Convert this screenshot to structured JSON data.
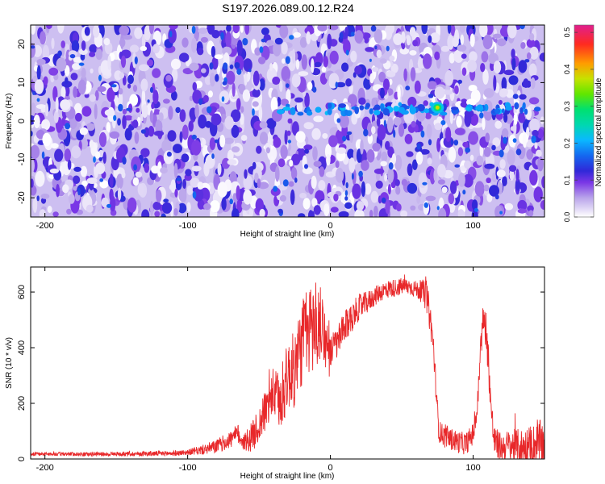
{
  "title": "S197.2026.089.00.12.R24",
  "chart_data": [
    {
      "type": "heatmap",
      "name": "spectrogram",
      "xlabel": "Height of straight line (km)",
      "ylabel": "Frequency (Hz)",
      "xlim": [
        -210,
        150
      ],
      "ylim": [
        -25,
        25
      ],
      "xticks": [
        -200,
        -100,
        0,
        100
      ],
      "yticks": [
        -20,
        -10,
        0,
        10,
        20
      ],
      "colorbar": {
        "label": "Normalized spectral amplitude",
        "range": [
          0.0,
          0.52
        ],
        "ticks": [
          0.0,
          0.1,
          0.2,
          0.3,
          0.4,
          0.5
        ],
        "tick_labels": [
          "0.0",
          "0.1",
          "0.2",
          "0.3",
          "0.4",
          "0.5"
        ]
      },
      "signal_band": {
        "frequency_hz": 3,
        "x_range_km": [
          -35,
          150
        ]
      },
      "peak": {
        "x_km": 75,
        "frequency_hz": 3.5,
        "value": 0.38
      },
      "colormap": [
        "#ffffff",
        "#a48ae0",
        "#6f2fe2",
        "#2030d8",
        "#0ab8ff",
        "#00e070",
        "#b8e600",
        "#ff8a00",
        "#ff1f30",
        "#e01f8e"
      ]
    },
    {
      "type": "line",
      "name": "snr",
      "xlabel": "Height of straight line (km)",
      "ylabel": "SNR (10 * v/v)",
      "xlim": [
        -210,
        150
      ],
      "ylim": [
        0,
        690
      ],
      "xticks": [
        -200,
        -100,
        0,
        100
      ],
      "yticks": [
        0,
        200,
        400,
        600
      ],
      "color": "#e8282a",
      "envelope": {
        "x": [
          -210,
          -190,
          -170,
          -150,
          -130,
          -110,
          -100,
          -90,
          -80,
          -70,
          -65,
          -60,
          -55,
          -50,
          -45,
          -40,
          -35,
          -30,
          -25,
          -20,
          -15,
          -12,
          -10,
          -8,
          -5,
          -3,
          -1,
          0,
          2,
          5,
          10,
          15,
          20,
          25,
          30,
          35,
          40,
          45,
          50,
          55,
          60,
          65,
          68,
          70,
          72,
          74,
          76,
          80,
          85,
          90,
          95,
          100,
          103,
          105,
          107,
          109,
          111,
          113,
          115,
          120,
          125,
          130,
          135,
          140,
          145,
          150
        ],
        "y": [
          18,
          18,
          17,
          18,
          19,
          20,
          24,
          32,
          45,
          70,
          90,
          60,
          80,
          120,
          180,
          240,
          200,
          300,
          320,
          420,
          460,
          480,
          480,
          470,
          490,
          400,
          360,
          380,
          400,
          420,
          470,
          510,
          545,
          560,
          580,
          600,
          610,
          615,
          620,
          620,
          610,
          600,
          570,
          500,
          420,
          250,
          100,
          80,
          70,
          60,
          55,
          90,
          180,
          380,
          500,
          470,
          330,
          150,
          60,
          40,
          50,
          45,
          40,
          45,
          50,
          60
        ]
      },
      "noise": {
        "x": [
          -210,
          -100,
          -80,
          -60,
          -40,
          -20,
          -10,
          0,
          10,
          30,
          60,
          70,
          75,
          100,
          110,
          120,
          150
        ],
        "amplitude": [
          6,
          10,
          25,
          40,
          90,
          160,
          180,
          60,
          60,
          35,
          30,
          60,
          40,
          40,
          70,
          50,
          90
        ]
      }
    }
  ]
}
